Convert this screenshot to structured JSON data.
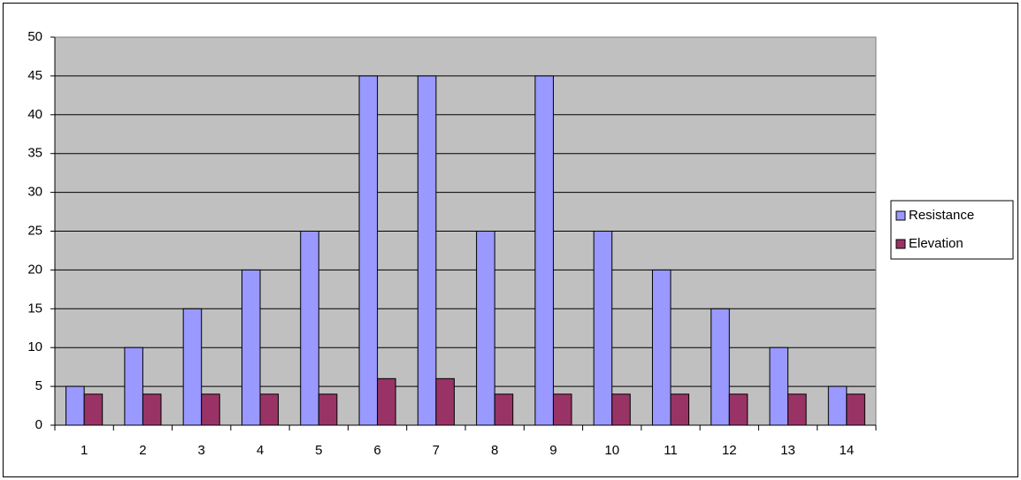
{
  "chart_data": {
    "type": "bar",
    "categories": [
      "1",
      "2",
      "3",
      "4",
      "5",
      "6",
      "7",
      "8",
      "9",
      "10",
      "11",
      "12",
      "13",
      "14"
    ],
    "series": [
      {
        "name": "Resistance",
        "color": "#9999ff",
        "values": [
          5,
          10,
          15,
          20,
          25,
          45,
          45,
          25,
          45,
          25,
          20,
          15,
          10,
          5
        ]
      },
      {
        "name": "Elevation",
        "color": "#993366",
        "values": [
          4,
          4,
          4,
          4,
          4,
          6,
          6,
          4,
          4,
          4,
          4,
          4,
          4,
          4
        ]
      }
    ],
    "ylim": [
      0,
      50
    ],
    "yticks": [
      0,
      5,
      10,
      15,
      20,
      25,
      30,
      35,
      40,
      45,
      50
    ],
    "grid": true,
    "plot_background": "#c0c0c0",
    "legend": "right"
  }
}
